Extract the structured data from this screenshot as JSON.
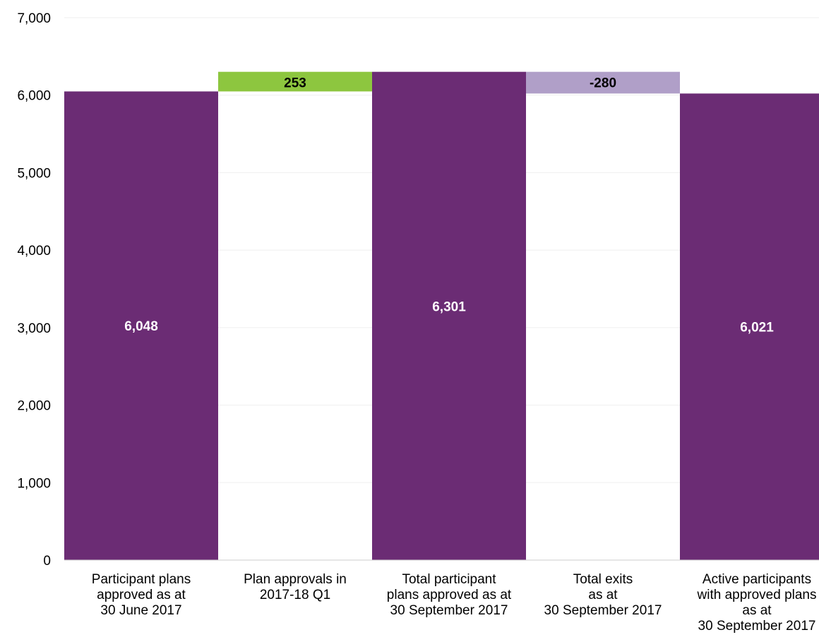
{
  "chart_data": {
    "type": "bar",
    "subtype": "waterfall",
    "title": "",
    "xlabel": "",
    "ylabel": "",
    "ylim": [
      0,
      7000
    ],
    "yticks": [
      0,
      1000,
      2000,
      3000,
      4000,
      5000,
      6000,
      7000
    ],
    "ytick_labels": [
      "0",
      "1,000",
      "2,000",
      "3,000",
      "4,000",
      "5,000",
      "6,000",
      "7,000"
    ],
    "grid": true,
    "legend": "none",
    "categories": [
      [
        "Participant plans",
        "approved as at",
        "30 June 2017"
      ],
      [
        "Plan approvals in",
        "2017-18 Q1"
      ],
      [
        "Total participant",
        "plans approved as at",
        "30 September 2017"
      ],
      [
        "Total exits",
        "as at",
        "30 September 2017"
      ],
      [
        "Active participants",
        "with approved plans",
        "as at",
        "30 September 2017"
      ]
    ],
    "bars": [
      {
        "kind": "total",
        "start": 0,
        "end": 6048,
        "value": 6048,
        "label": "6,048"
      },
      {
        "kind": "increase",
        "start": 6048,
        "end": 6301,
        "value": 253,
        "label": "253"
      },
      {
        "kind": "total",
        "start": 0,
        "end": 6301,
        "value": 6301,
        "label": "6,301"
      },
      {
        "kind": "decrease",
        "start": 6301,
        "end": 6021,
        "value": -280,
        "label": "-280"
      },
      {
        "kind": "total",
        "start": 0,
        "end": 6021,
        "value": 6021,
        "label": "6,021"
      }
    ],
    "colors": {
      "total": "#6b2c74",
      "increase": "#8dc63f",
      "decrease": "#b09fc8",
      "grid": "#efefef",
      "axis": "#cccccc",
      "total_label": "#ffffff",
      "change_label": "#000000"
    }
  }
}
